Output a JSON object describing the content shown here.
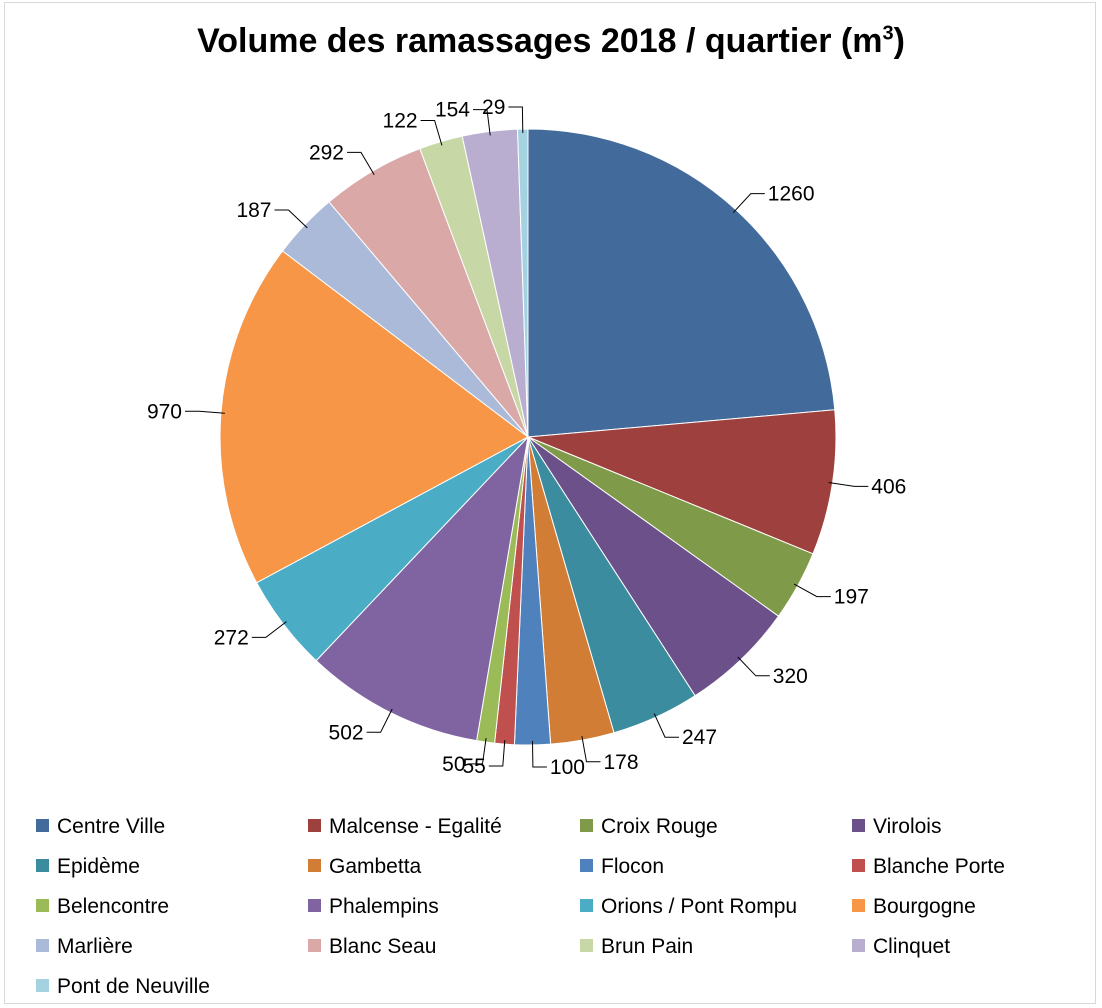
{
  "chart_data": {
    "type": "pie",
    "title": "Volume des ramassages 2018 / quartier (m",
    "title_sup": "3",
    "title_end": ")",
    "start_angle": "12 o'clock",
    "direction": "clockwise",
    "legend_position": "bottom",
    "slices": [
      {
        "label": "Centre Ville",
        "value": 1260,
        "color": "#426a9b"
      },
      {
        "label": "Malcense - Egalité",
        "value": 406,
        "color": "#9e413e"
      },
      {
        "label": "Croix Rouge",
        "value": 197,
        "color": "#7f9b4a"
      },
      {
        "label": "Virolois",
        "value": 320,
        "color": "#6b5089"
      },
      {
        "label": "Epidème",
        "value": 247,
        "color": "#3c8ca0"
      },
      {
        "label": "Gambetta",
        "value": 178,
        "color": "#d27d36"
      },
      {
        "label": "Flocon",
        "value": 100,
        "color": "#4f81bd"
      },
      {
        "label": "Blanche Porte",
        "value": 55,
        "color": "#c0504d"
      },
      {
        "label": "Belencontre",
        "value": 50,
        "color": "#9bbb59"
      },
      {
        "label": "Phalempins",
        "value": 502,
        "color": "#8064a2"
      },
      {
        "label": "Orions / Pont Rompu",
        "value": 272,
        "color": "#4bacc6"
      },
      {
        "label": "Bourgogne",
        "value": 970,
        "color": "#f79646"
      },
      {
        "label": "Marlière",
        "value": 187,
        "color": "#abbad9"
      },
      {
        "label": "Blanc Seau",
        "value": 292,
        "color": "#d9a8a7"
      },
      {
        "label": "Brun Pain",
        "value": 122,
        "color": "#c7d7a6"
      },
      {
        "label": "Clinquet",
        "value": 154,
        "color": "#b9aecf"
      },
      {
        "label": "Pont de Neuville",
        "value": 29,
        "color": "#a5d2e0"
      }
    ]
  }
}
